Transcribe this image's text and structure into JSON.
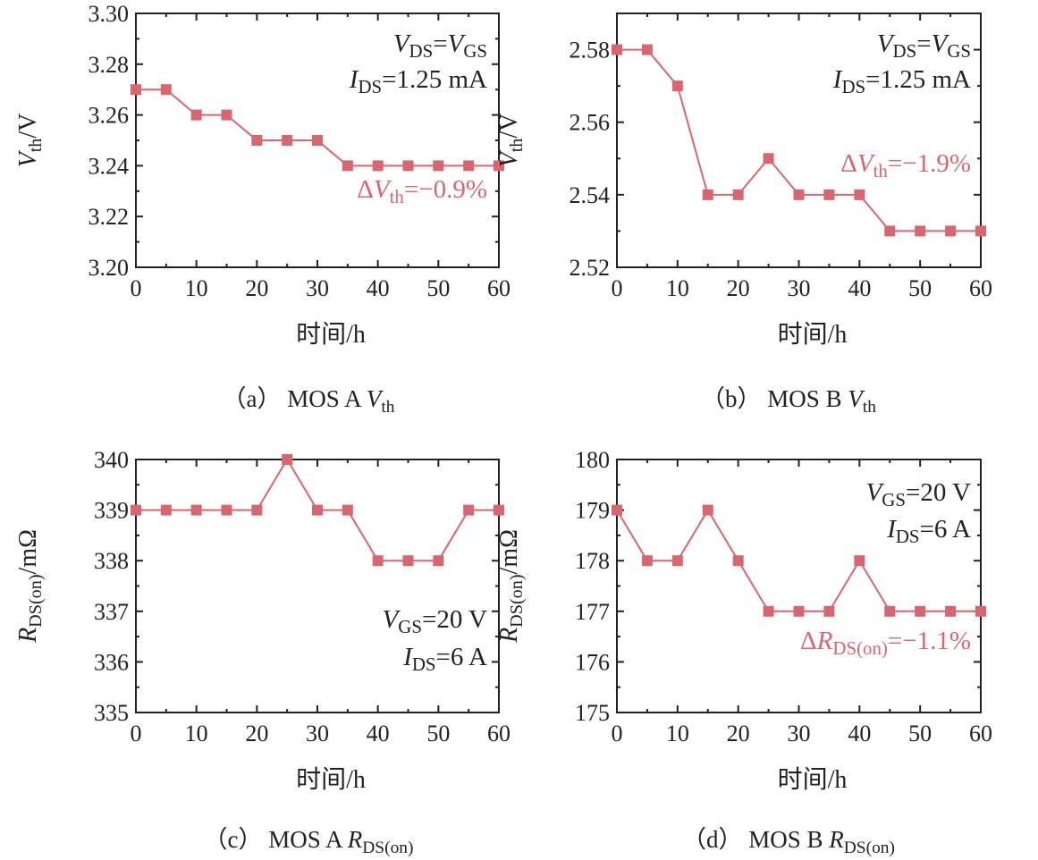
{
  "colors": {
    "series": "#d9666f",
    "annotation": "#d9666f",
    "axis": "#222222"
  },
  "chart_data": [
    {
      "type": "line",
      "caption": {
        "prefix": "（a） MOS A ",
        "var": "V",
        "sub": "th"
      },
      "xlabel": "时间/h",
      "ylabel": {
        "var": "V",
        "sub": "th",
        "suffix": "/V"
      },
      "xlim": [
        0,
        60
      ],
      "ylim": [
        3.2,
        3.3
      ],
      "xticks": [
        "0",
        "10",
        "20",
        "30",
        "40",
        "50",
        "60"
      ],
      "yticks": [
        "3.20",
        "3.22",
        "3.24",
        "3.26",
        "3.28",
        "3.30"
      ],
      "x": [
        0,
        5,
        10,
        15,
        20,
        25,
        30,
        35,
        40,
        45,
        50,
        55,
        60
      ],
      "y": [
        3.27,
        3.27,
        3.26,
        3.26,
        3.25,
        3.25,
        3.25,
        3.24,
        3.24,
        3.24,
        3.24,
        3.24,
        3.24
      ],
      "annotations": {
        "line1": {
          "var": "V",
          "sub": "DS",
          "eq": "=",
          "var2": "V",
          "sub2": "GS"
        },
        "line2": {
          "var": "I",
          "sub": "DS",
          "rest": "=1.25 mA"
        },
        "delta": {
          "pre": "Δ",
          "var": "V",
          "sub": "th",
          "rest": "=−0.9%"
        }
      }
    },
    {
      "type": "line",
      "caption": {
        "prefix": "（b） MOS B ",
        "var": "V",
        "sub": "th"
      },
      "xlabel": "时间/h",
      "ylabel": {
        "var": "V",
        "sub": "th",
        "suffix": "/V"
      },
      "xlim": [
        0,
        60
      ],
      "ylim": [
        2.52,
        2.59
      ],
      "xticks": [
        "0",
        "10",
        "20",
        "30",
        "40",
        "50",
        "60"
      ],
      "yticks": [
        "2.52",
        "2.54",
        "2.56",
        "2.58"
      ],
      "x": [
        0,
        5,
        10,
        15,
        20,
        25,
        30,
        35,
        40,
        45,
        50,
        55,
        60
      ],
      "y": [
        2.58,
        2.58,
        2.57,
        2.54,
        2.54,
        2.55,
        2.54,
        2.54,
        2.54,
        2.53,
        2.53,
        2.53,
        2.53
      ],
      "annotations": {
        "line1": {
          "var": "V",
          "sub": "DS",
          "eq": "=",
          "var2": "V",
          "sub2": "GS"
        },
        "line2": {
          "var": "I",
          "sub": "DS",
          "rest": "=1.25 mA"
        },
        "delta": {
          "pre": "Δ",
          "var": "V",
          "sub": "th",
          "rest": "=−1.9%"
        }
      }
    },
    {
      "type": "line",
      "caption": {
        "prefix": "（c） MOS A ",
        "var": "R",
        "sub": "DS(on)"
      },
      "xlabel": "时间/h",
      "ylabel": {
        "var": "R",
        "sub": "DS(on)",
        "suffix": "/mΩ"
      },
      "xlim": [
        0,
        60
      ],
      "ylim": [
        335,
        340
      ],
      "xticks": [
        "0",
        "10",
        "20",
        "30",
        "40",
        "50",
        "60"
      ],
      "yticks": [
        "335",
        "336",
        "337",
        "338",
        "339",
        "340"
      ],
      "x": [
        0,
        5,
        10,
        15,
        20,
        25,
        30,
        35,
        40,
        45,
        50,
        55,
        60
      ],
      "y": [
        339,
        339,
        339,
        339,
        339,
        340,
        339,
        339,
        338,
        338,
        338,
        339,
        339
      ],
      "annotations": {
        "line1": {
          "var": "V",
          "sub": "GS",
          "rest": "=20 V"
        },
        "line2": {
          "var": "I",
          "sub": "DS",
          "rest": "=6 A"
        }
      }
    },
    {
      "type": "line",
      "caption": {
        "prefix": "（d） MOS B ",
        "var": "R",
        "sub": "DS(on)"
      },
      "xlabel": "时间/h",
      "ylabel": {
        "var": "R",
        "sub": "DS(on)",
        "suffix": "/mΩ"
      },
      "xlim": [
        0,
        60
      ],
      "ylim": [
        175,
        180
      ],
      "xticks": [
        "0",
        "10",
        "20",
        "30",
        "40",
        "50",
        "60"
      ],
      "yticks": [
        "175",
        "176",
        "177",
        "178",
        "179",
        "180"
      ],
      "x": [
        0,
        5,
        10,
        15,
        20,
        25,
        30,
        35,
        40,
        45,
        50,
        55,
        60
      ],
      "y": [
        179,
        178,
        178,
        179,
        178,
        177,
        177,
        177,
        178,
        177,
        177,
        177,
        177
      ],
      "annotations": {
        "line1": {
          "var": "V",
          "sub": "GS",
          "rest": "=20 V"
        },
        "line2": {
          "var": "I",
          "sub": "DS",
          "rest": "=6 A"
        },
        "delta": {
          "pre": "Δ",
          "var": "R",
          "sub": "DS(on)",
          "rest": "=−1.1%"
        }
      }
    }
  ]
}
